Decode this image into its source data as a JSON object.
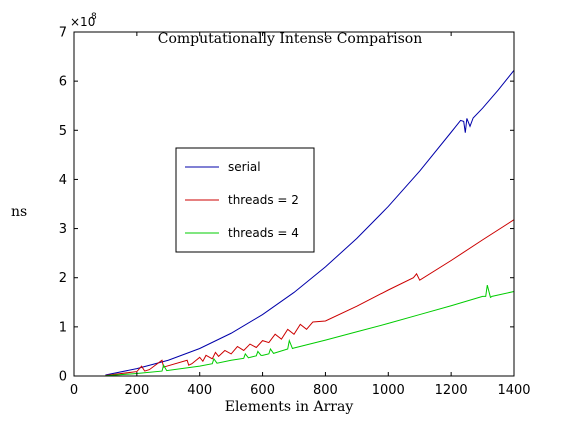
{
  "chart_data": {
    "type": "line",
    "title": "Computationally Intense Comparison",
    "xlabel": "Elements in Array",
    "ylabel": "ns",
    "y_exponent_base": "×10",
    "y_exponent_power": "8",
    "xlim": [
      0,
      1400
    ],
    "ylim": [
      0,
      7
    ],
    "x_ticks": [
      0,
      200,
      400,
      600,
      800,
      1000,
      1200,
      1400
    ],
    "x_tick_labels": [
      "0",
      "200",
      "400",
      "600",
      "800",
      "1000",
      "1200",
      "1400"
    ],
    "y_ticks": [
      0,
      1,
      2,
      3,
      4,
      5,
      6,
      7
    ],
    "y_tick_labels": [
      "0",
      "1",
      "2",
      "3",
      "4",
      "5",
      "6",
      "7"
    ],
    "grid": false,
    "legend_position": "center-left",
    "series": [
      {
        "name": "serial",
        "color": "#0000aa",
        "x": [
          100,
          200,
          300,
          400,
          500,
          600,
          700,
          800,
          900,
          1000,
          1100,
          1200,
          1230,
          1240,
          1245,
          1250,
          1260,
          1270,
          1300,
          1350,
          1400
        ],
        "y": [
          0.02,
          0.15,
          0.32,
          0.56,
          0.87,
          1.25,
          1.7,
          2.22,
          2.8,
          3.45,
          4.17,
          4.96,
          5.2,
          5.18,
          4.95,
          5.24,
          5.08,
          5.25,
          5.45,
          5.82,
          6.22
        ]
      },
      {
        "name": "threads = 2",
        "color": "#cc0000",
        "x": [
          100,
          200,
          215,
          225,
          240,
          280,
          285,
          295,
          360,
          365,
          375,
          400,
          410,
          420,
          440,
          450,
          460,
          480,
          500,
          520,
          540,
          560,
          580,
          600,
          620,
          640,
          660,
          680,
          700,
          720,
          740,
          760,
          800,
          900,
          1000,
          1080,
          1090,
          1100,
          1200,
          1300,
          1400
        ],
        "y": [
          0.01,
          0.09,
          0.2,
          0.1,
          0.13,
          0.32,
          0.18,
          0.2,
          0.32,
          0.22,
          0.25,
          0.38,
          0.3,
          0.42,
          0.35,
          0.48,
          0.4,
          0.52,
          0.45,
          0.6,
          0.52,
          0.65,
          0.58,
          0.72,
          0.68,
          0.85,
          0.75,
          0.95,
          0.85,
          1.05,
          0.95,
          1.1,
          1.12,
          1.42,
          1.75,
          2.0,
          2.08,
          1.95,
          2.35,
          2.77,
          3.18
        ]
      },
      {
        "name": "threads = 4",
        "color": "#00cc00",
        "x": [
          100,
          200,
          280,
          285,
          295,
          400,
          440,
          445,
          455,
          500,
          540,
          545,
          555,
          560,
          580,
          585,
          595,
          600,
          620,
          625,
          635,
          640,
          680,
          685,
          695,
          700,
          800,
          900,
          1000,
          1100,
          1200,
          1300,
          1310,
          1315,
          1325,
          1330,
          1400
        ],
        "y": [
          0.005,
          0.05,
          0.1,
          0.22,
          0.11,
          0.2,
          0.25,
          0.35,
          0.26,
          0.32,
          0.36,
          0.45,
          0.37,
          0.38,
          0.41,
          0.5,
          0.42,
          0.42,
          0.45,
          0.55,
          0.46,
          0.47,
          0.55,
          0.72,
          0.56,
          0.57,
          0.73,
          0.9,
          1.07,
          1.25,
          1.43,
          1.62,
          1.62,
          1.85,
          1.6,
          1.62,
          1.72
        ]
      }
    ]
  }
}
